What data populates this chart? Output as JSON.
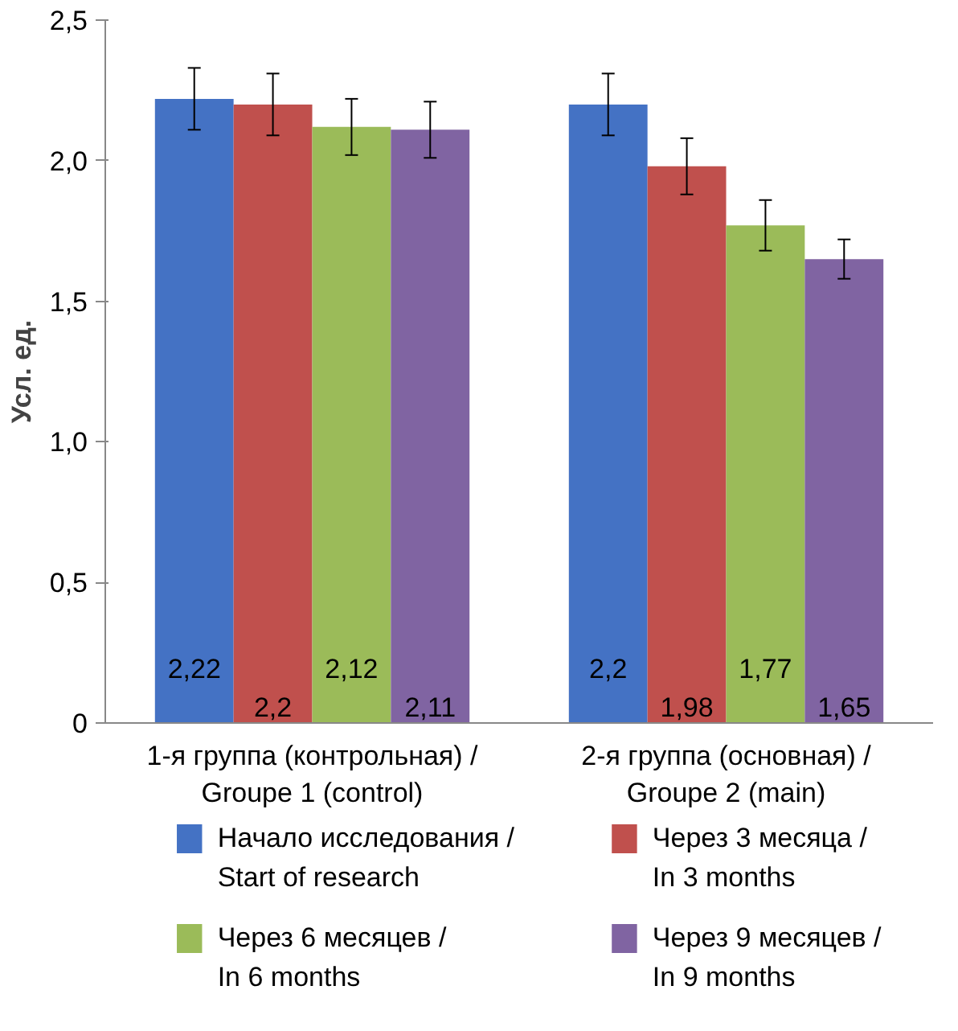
{
  "chart_data": {
    "type": "bar",
    "ylabel": "Усл. ед.",
    "categories": [
      "1-я группа (контрольная) /\nGroupe 1 (control)",
      "2-я группа (основная) /\nGroupe 2 (main)"
    ],
    "series": [
      {
        "name": "Начало исследования /\nStart of research",
        "color": "#4472c4",
        "values": [
          2.22,
          2.2
        ],
        "errors": [
          0.11,
          0.11
        ],
        "value_labels": [
          "2,22",
          "2,2"
        ]
      },
      {
        "name": "Через 3 месяца /\nIn 3 months",
        "color": "#c0504d",
        "values": [
          2.2,
          1.98
        ],
        "errors": [
          0.11,
          0.1
        ],
        "value_labels": [
          "2,2",
          "1,98"
        ]
      },
      {
        "name": "Через 6 месяцев /\nIn 6 months",
        "color": "#9bbb59",
        "values": [
          2.12,
          1.77
        ],
        "errors": [
          0.1,
          0.09
        ],
        "value_labels": [
          "2,12",
          "1,77"
        ]
      },
      {
        "name": "Через 9 месяцев /\nIn 9 months",
        "color": "#8064a2",
        "values": [
          2.11,
          1.65
        ],
        "errors": [
          0.1,
          0.07
        ],
        "value_labels": [
          "2,11",
          "1,65"
        ]
      }
    ],
    "ylim": [
      0,
      2.5
    ],
    "yticks": [
      0,
      {
        "value": 0.5,
        "label": "0,5"
      },
      {
        "value": 1.0,
        "label": "1,0"
      },
      {
        "value": 1.5,
        "label": "1,5"
      },
      {
        "value": 2.0,
        "label": "2,0"
      },
      {
        "value": 2.5,
        "label": "2,5"
      }
    ],
    "grid": false,
    "legend": "bottom"
  }
}
